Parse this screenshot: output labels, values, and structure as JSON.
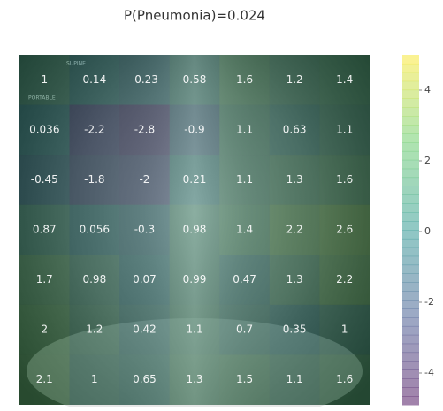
{
  "chart_data": {
    "type": "heatmap",
    "title": "P(Pneumonia)=0.024",
    "image_labels": [
      "SUPINE",
      "PORTABLE"
    ],
    "values": [
      [
        1,
        0.14,
        -0.23,
        0.58,
        1.6,
        1.2,
        1.4
      ],
      [
        0.036,
        -2.2,
        -2.8,
        -0.9,
        1.1,
        0.63,
        1.1
      ],
      [
        -0.45,
        -1.8,
        -2,
        0.21,
        1.1,
        1.3,
        1.6
      ],
      [
        0.87,
        0.056,
        -0.3,
        0.98,
        1.4,
        2.2,
        2.6
      ],
      [
        1.7,
        0.98,
        0.07,
        0.99,
        0.47,
        1.3,
        2.2
      ],
      [
        2,
        1.2,
        0.42,
        1.1,
        0.7,
        0.35,
        1
      ],
      [
        2.1,
        1,
        0.65,
        1.3,
        1.5,
        1.1,
        1.6
      ]
    ],
    "colormap": "viridis",
    "clim": [
      -4.9,
      5
    ],
    "colorbar_ticks": [
      4,
      2,
      0,
      -2,
      -4
    ]
  }
}
